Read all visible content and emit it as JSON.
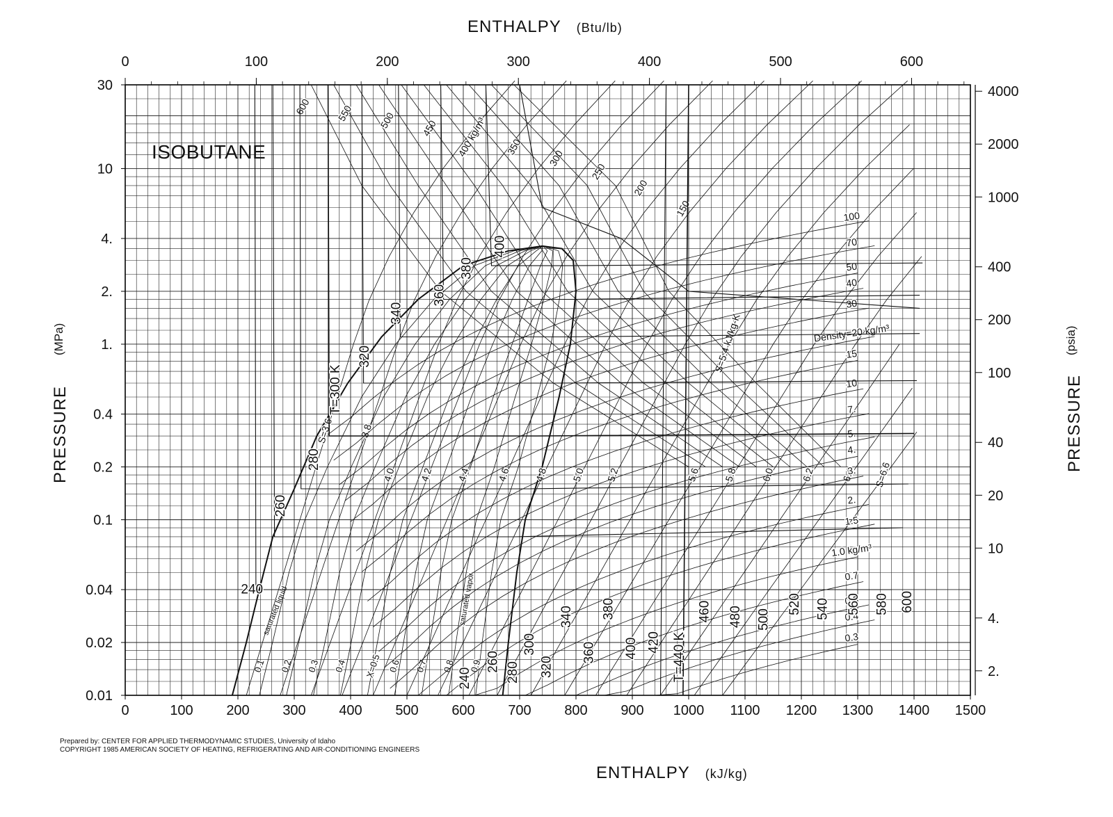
{
  "chart_data": {
    "type": "line",
    "title": "ISOBUTANE",
    "top_axis": {
      "label": "ENTHALPY",
      "unit": "(Btu/lb)",
      "ticks": [
        0,
        100,
        200,
        300,
        400,
        500,
        600
      ]
    },
    "bottom_axis": {
      "label": "ENTHALPY",
      "unit": "(kJ/kg)",
      "ticks": [
        0,
        100,
        200,
        300,
        400,
        500,
        600,
        700,
        800,
        900,
        1000,
        1100,
        1200,
        1300,
        1400,
        1500
      ],
      "range": [
        0,
        1500
      ]
    },
    "left_axis": {
      "label": "PRESSURE",
      "unit": "(MPa)",
      "scale": "log",
      "range": [
        0.01,
        30
      ],
      "ticks": [
        {
          "v": 0.01,
          "t": "0.01"
        },
        {
          "v": 0.02,
          "t": "0.02"
        },
        {
          "v": 0.04,
          "t": "0.04"
        },
        {
          "v": 0.1,
          "t": "0.1"
        },
        {
          "v": 0.2,
          "t": "0.2"
        },
        {
          "v": 0.4,
          "t": "0.4"
        },
        {
          "v": 1,
          "t": "1."
        },
        {
          "v": 2,
          "t": "2."
        },
        {
          "v": 4,
          "t": "4."
        },
        {
          "v": 10,
          "t": "10"
        },
        {
          "v": 30,
          "t": "30"
        }
      ]
    },
    "right_axis": {
      "label": "PRESSURE",
      "unit": "(psia)",
      "scale": "log",
      "ticks": [
        {
          "v": 2,
          "t": "2."
        },
        {
          "v": 4,
          "t": "4."
        },
        {
          "v": 10,
          "t": "10"
        },
        {
          "v": 20,
          "t": "20"
        },
        {
          "v": 40,
          "t": "40"
        },
        {
          "v": 100,
          "t": "100"
        },
        {
          "v": 200,
          "t": "200"
        },
        {
          "v": 400,
          "t": "400"
        },
        {
          "v": 1000,
          "t": "1000"
        },
        {
          "v": 2000,
          "t": "2000"
        },
        {
          "v": 4000,
          "t": "4000"
        }
      ]
    },
    "saturation_dome": {
      "liquid": [
        [
          190,
          0.01
        ],
        [
          215,
          0.02
        ],
        [
          238,
          0.04
        ],
        [
          262,
          0.08
        ],
        [
          300,
          0.15
        ],
        [
          340,
          0.3
        ],
        [
          395,
          0.6
        ],
        [
          455,
          1.1
        ],
        [
          520,
          1.8
        ],
        [
          600,
          2.8
        ],
        [
          680,
          3.4
        ],
        [
          740,
          3.62
        ]
      ],
      "vapor": [
        [
          740,
          3.62
        ],
        [
          775,
          3.5
        ],
        [
          795,
          3.0
        ],
        [
          800,
          2.0
        ],
        [
          790,
          1.0
        ],
        [
          770,
          0.5
        ],
        [
          740,
          0.2
        ],
        [
          710,
          0.1
        ],
        [
          695,
          0.05
        ],
        [
          680,
          0.02
        ],
        [
          670,
          0.01
        ]
      ],
      "labels": {
        "liquid": "saturated liquid",
        "vapor": "saturated vapor"
      }
    },
    "isotherms": [
      {
        "label": "240",
        "points": [
          [
            230,
            30
          ],
          [
            232,
            0.04
          ],
          [
            655,
            0.04
          ],
          [
            1360,
            0.04
          ]
        ]
      },
      {
        "label": "260",
        "points": [
          [
            262,
            30
          ],
          [
            265,
            0.08
          ],
          [
            690,
            0.08
          ],
          [
            1380,
            0.09
          ]
        ]
      },
      {
        "label": "280",
        "points": [
          [
            310,
            30
          ],
          [
            312,
            0.15
          ],
          [
            710,
            0.15
          ],
          [
            1390,
            0.16
          ]
        ]
      },
      {
        "label": "T=300 K",
        "points": [
          [
            360,
            30
          ],
          [
            362,
            0.3
          ],
          [
            730,
            0.3
          ],
          [
            1400,
            0.31
          ]
        ]
      },
      {
        "label": "320",
        "points": [
          [
            420,
            30
          ],
          [
            423,
            0.6
          ],
          [
            760,
            0.6
          ],
          [
            1405,
            0.62
          ]
        ]
      },
      {
        "label": "340",
        "points": [
          [
            485,
            30
          ],
          [
            488,
            1.1
          ],
          [
            780,
            1.1
          ],
          [
            1410,
            1.15
          ]
        ]
      },
      {
        "label": "360",
        "points": [
          [
            560,
            30
          ],
          [
            565,
            1.8
          ],
          [
            795,
            1.8
          ],
          [
            1410,
            1.9
          ]
        ]
      },
      {
        "label": "380",
        "points": [
          [
            640,
            30
          ],
          [
            650,
            2.8
          ],
          [
            790,
            2.8
          ],
          [
            1415,
            2.9
          ]
        ]
      },
      {
        "label": "400",
        "points": [
          [
            700,
            30
          ],
          [
            740,
            6
          ],
          [
            880,
            4
          ],
          [
            1000,
            2
          ],
          [
            1410,
            1.6
          ]
        ]
      },
      {
        "label": "420",
        "points": [
          [
            960,
            30
          ],
          [
            950,
            0.01
          ]
        ]
      },
      {
        "label": "T=440 K",
        "points": [
          [
            1000,
            30
          ],
          [
            990,
            0.01
          ]
        ]
      }
    ],
    "quality_lines": {
      "labels": [
        "0.1",
        "0.2",
        "0.3",
        "0.4",
        "X=0.5",
        "0.6",
        "0.7",
        "0.8",
        "0.9"
      ],
      "values": [
        0.1,
        0.2,
        0.3,
        0.4,
        0.5,
        0.6,
        0.7,
        0.8,
        0.9
      ]
    },
    "isentropes": {
      "labels": [
        "S=3.6",
        "3.8",
        "4.0",
        "4.2",
        "4.4",
        "4.6",
        "4.8",
        "5.0",
        "5.2",
        "S=5.4 kJ/kg-K",
        "5.6",
        "5.8",
        "6.0",
        "6.2",
        "6.4",
        "S=6.6"
      ],
      "h_at_0_01": [
        215,
        275,
        330,
        385,
        440,
        500,
        555,
        610,
        660,
        720,
        780,
        835,
        890,
        950,
        1010,
        1060
      ]
    },
    "isochores": {
      "labels": [
        "600",
        "550",
        "500",
        "450",
        "400 kg/m³",
        "350",
        "300",
        "250",
        "200",
        "150",
        "100",
        "70",
        "50",
        "40",
        "30",
        "Density=20 kg/m³",
        "15",
        "10",
        "7.",
        "5.",
        "4.",
        "3.",
        "2.",
        "1.5",
        "1.0 kg/m³",
        "0.7",
        "0.5",
        "0.4",
        "0.3"
      ],
      "values": [
        600,
        550,
        500,
        450,
        400,
        350,
        300,
        250,
        200,
        150,
        100,
        70,
        50,
        40,
        30,
        20,
        15,
        10,
        7,
        5,
        4,
        3,
        2,
        1.5,
        1.0,
        0.7,
        0.5,
        0.4,
        0.3
      ]
    },
    "bottom_temperature_labels": [
      "240",
      "260",
      "280",
      "300",
      "320",
      "340",
      "360",
      "380",
      "400",
      "420",
      "T=440 K",
      "460",
      "480",
      "500",
      "520",
      "540",
      "560",
      "580",
      "600"
    ],
    "grid": true
  },
  "credits": {
    "line1": "Prepared by:  CENTER FOR APPLIED THERMODYNAMIC STUDIES, University of Idaho",
    "line2": "COPYRIGHT 1985  AMERICAN SOCIETY OF HEATING, REFRIGERATING AND AIR-CONDITIONING ENGINEERS"
  }
}
